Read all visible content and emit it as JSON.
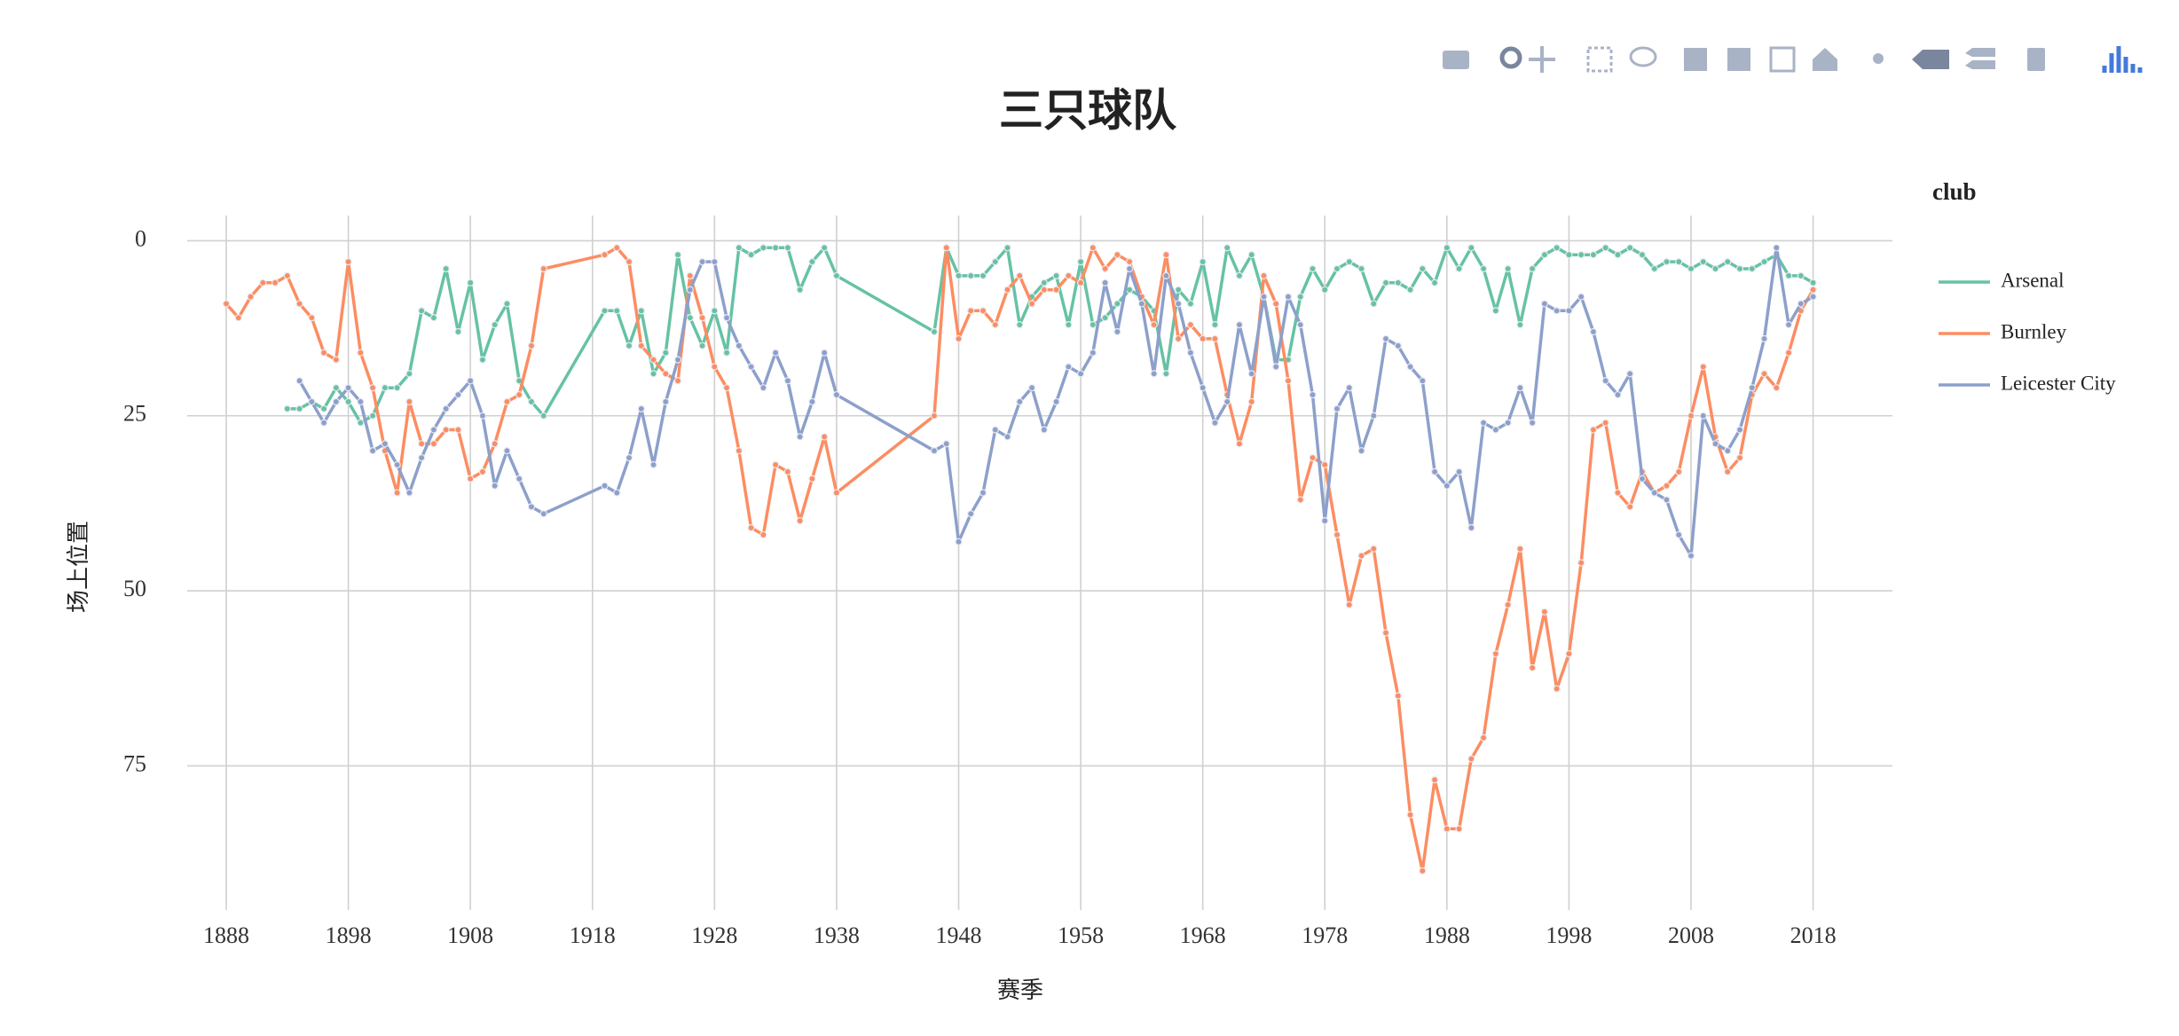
{
  "chart_data": {
    "type": "line",
    "title": "三只球队",
    "x_label": "赛季",
    "y_label": "场上位置",
    "legend_title": "club",
    "legend_position": "right",
    "grid": true,
    "markers": true,
    "y_reversed": true,
    "xlim": [
      1884.8,
      2024.5
    ],
    "ylim": [
      95.6,
      -3.6
    ],
    "xticks": [
      1888,
      1898,
      1908,
      1918,
      1928,
      1938,
      1948,
      1958,
      1968,
      1978,
      1988,
      1998,
      2008,
      2018
    ],
    "yticks": [
      0,
      25,
      50,
      75
    ],
    "series": [
      {
        "name": "Arsenal",
        "color": "#66c2a5",
        "x": [
          1893,
          1894,
          1895,
          1896,
          1897,
          1898,
          1899,
          1900,
          1901,
          1902,
          1903,
          1904,
          1905,
          1906,
          1907,
          1908,
          1909,
          1910,
          1911,
          1912,
          1913,
          1914,
          1919,
          1920,
          1921,
          1922,
          1923,
          1924,
          1925,
          1926,
          1927,
          1928,
          1929,
          1930,
          1931,
          1932,
          1933,
          1934,
          1935,
          1936,
          1937,
          1938,
          1946,
          1947,
          1948,
          1949,
          1950,
          1951,
          1952,
          1953,
          1954,
          1955,
          1956,
          1957,
          1958,
          1959,
          1960,
          1961,
          1962,
          1963,
          1964,
          1965,
          1966,
          1967,
          1968,
          1969,
          1970,
          1971,
          1972,
          1973,
          1974,
          1975,
          1976,
          1977,
          1978,
          1979,
          1980,
          1981,
          1982,
          1983,
          1984,
          1985,
          1986,
          1987,
          1988,
          1989,
          1990,
          1991,
          1992,
          1993,
          1994,
          1995,
          1996,
          1997,
          1998,
          1999,
          2000,
          2001,
          2002,
          2003,
          2004,
          2005,
          2006,
          2007,
          2008,
          2009,
          2010,
          2011,
          2012,
          2013,
          2014,
          2015,
          2016,
          2017,
          2018
        ],
        "values": [
          24,
          24,
          23,
          24,
          21,
          23,
          26,
          25,
          21,
          21,
          19,
          10,
          11,
          4,
          13,
          6,
          17,
          12,
          9,
          20,
          23,
          25,
          10,
          10,
          15,
          10,
          19,
          16,
          2,
          11,
          15,
          10,
          16,
          1,
          2,
          1,
          1,
          1,
          7,
          3,
          1,
          5,
          13,
          1,
          5,
          5,
          5,
          3,
          1,
          12,
          8,
          6,
          5,
          12,
          3,
          12,
          11,
          9,
          7,
          8,
          10,
          19,
          7,
          9,
          3,
          12,
          1,
          5,
          2,
          8,
          17,
          17,
          8,
          4,
          7,
          4,
          3,
          4,
          9,
          6,
          6,
          7,
          4,
          6,
          1,
          4,
          1,
          4,
          10,
          4,
          12,
          4,
          2,
          1,
          2,
          2,
          2,
          1,
          2,
          1,
          2,
          4,
          3,
          3,
          4,
          3,
          4,
          3,
          4,
          4,
          3,
          2,
          5,
          5,
          6
        ]
      },
      {
        "name": "Burnley",
        "color": "#fc8d62",
        "x": [
          1888,
          1889,
          1890,
          1891,
          1892,
          1893,
          1894,
          1895,
          1896,
          1897,
          1898,
          1899,
          1900,
          1901,
          1902,
          1903,
          1904,
          1905,
          1906,
          1907,
          1908,
          1909,
          1910,
          1911,
          1912,
          1913,
          1914,
          1919,
          1920,
          1921,
          1922,
          1923,
          1924,
          1925,
          1926,
          1927,
          1928,
          1929,
          1930,
          1931,
          1932,
          1933,
          1934,
          1935,
          1936,
          1937,
          1938,
          1946,
          1947,
          1948,
          1949,
          1950,
          1951,
          1952,
          1953,
          1954,
          1955,
          1956,
          1957,
          1958,
          1959,
          1960,
          1961,
          1962,
          1963,
          1964,
          1965,
          1966,
          1967,
          1968,
          1969,
          1970,
          1971,
          1972,
          1973,
          1974,
          1975,
          1976,
          1977,
          1978,
          1979,
          1980,
          1981,
          1982,
          1983,
          1984,
          1985,
          1986,
          1987,
          1988,
          1989,
          1990,
          1991,
          1992,
          1993,
          1994,
          1995,
          1996,
          1997,
          1998,
          1999,
          2000,
          2001,
          2002,
          2003,
          2004,
          2005,
          2006,
          2007,
          2008,
          2009,
          2010,
          2011,
          2012,
          2013,
          2014,
          2015,
          2016,
          2017,
          2018
        ],
        "values": [
          9,
          11,
          8,
          6,
          6,
          5,
          9,
          11,
          16,
          17,
          3,
          16,
          21,
          30,
          36,
          23,
          29,
          29,
          27,
          27,
          34,
          33,
          29,
          23,
          22,
          15,
          4,
          2,
          1,
          3,
          15,
          17,
          19,
          20,
          5,
          11,
          18,
          21,
          30,
          41,
          42,
          32,
          33,
          40,
          34,
          28,
          36,
          25,
          1,
          14,
          10,
          10,
          12,
          7,
          5,
          9,
          7,
          7,
          5,
          6,
          1,
          4,
          2,
          3,
          8,
          12,
          2,
          14,
          12,
          14,
          14,
          22,
          29,
          23,
          5,
          9,
          20,
          37,
          31,
          32,
          42,
          52,
          45,
          44,
          56,
          65,
          82,
          90,
          77,
          84,
          84,
          74,
          71,
          59,
          52,
          44,
          61,
          53,
          64,
          59,
          46,
          27,
          26,
          36,
          38,
          33,
          36,
          35,
          33,
          25,
          18,
          28,
          33,
          31,
          22,
          19,
          21,
          16,
          10,
          7
        ]
      },
      {
        "name": "Leicester City",
        "color": "#8da0cb",
        "x": [
          1894,
          1895,
          1896,
          1897,
          1898,
          1899,
          1900,
          1901,
          1902,
          1903,
          1904,
          1905,
          1906,
          1907,
          1908,
          1909,
          1910,
          1911,
          1912,
          1913,
          1914,
          1919,
          1920,
          1921,
          1922,
          1923,
          1924,
          1925,
          1926,
          1927,
          1928,
          1929,
          1930,
          1931,
          1932,
          1933,
          1934,
          1935,
          1936,
          1937,
          1938,
          1946,
          1947,
          1948,
          1949,
          1950,
          1951,
          1952,
          1953,
          1954,
          1955,
          1956,
          1957,
          1958,
          1959,
          1960,
          1961,
          1962,
          1963,
          1964,
          1965,
          1966,
          1967,
          1968,
          1969,
          1970,
          1971,
          1972,
          1973,
          1974,
          1975,
          1976,
          1977,
          1978,
          1979,
          1980,
          1981,
          1982,
          1983,
          1984,
          1985,
          1986,
          1987,
          1988,
          1989,
          1990,
          1991,
          1992,
          1993,
          1994,
          1995,
          1996,
          1997,
          1998,
          1999,
          2000,
          2001,
          2002,
          2003,
          2004,
          2005,
          2006,
          2007,
          2008,
          2009,
          2010,
          2011,
          2012,
          2013,
          2014,
          2015,
          2016,
          2017,
          2018
        ],
        "values": [
          20,
          23,
          26,
          23,
          21,
          23,
          30,
          29,
          32,
          36,
          31,
          27,
          24,
          22,
          20,
          25,
          35,
          30,
          34,
          38,
          39,
          35,
          36,
          31,
          24,
          32,
          23,
          17,
          7,
          3,
          3,
          11,
          15,
          18,
          21,
          16,
          20,
          28,
          23,
          16,
          22,
          30,
          29,
          43,
          39,
          36,
          27,
          28,
          23,
          21,
          27,
          23,
          18,
          19,
          16,
          6,
          13,
          4,
          9,
          19,
          5,
          9,
          16,
          21,
          26,
          23,
          12,
          19,
          8,
          18,
          8,
          12,
          22,
          40,
          24,
          21,
          30,
          25,
          14,
          15,
          18,
          20,
          33,
          35,
          33,
          41,
          26,
          27,
          26,
          21,
          26,
          9,
          10,
          10,
          8,
          13,
          20,
          22,
          19,
          34,
          36,
          37,
          42,
          45,
          25,
          29,
          30,
          27,
          21,
          14,
          1,
          12,
          9,
          8
        ]
      }
    ]
  }
}
